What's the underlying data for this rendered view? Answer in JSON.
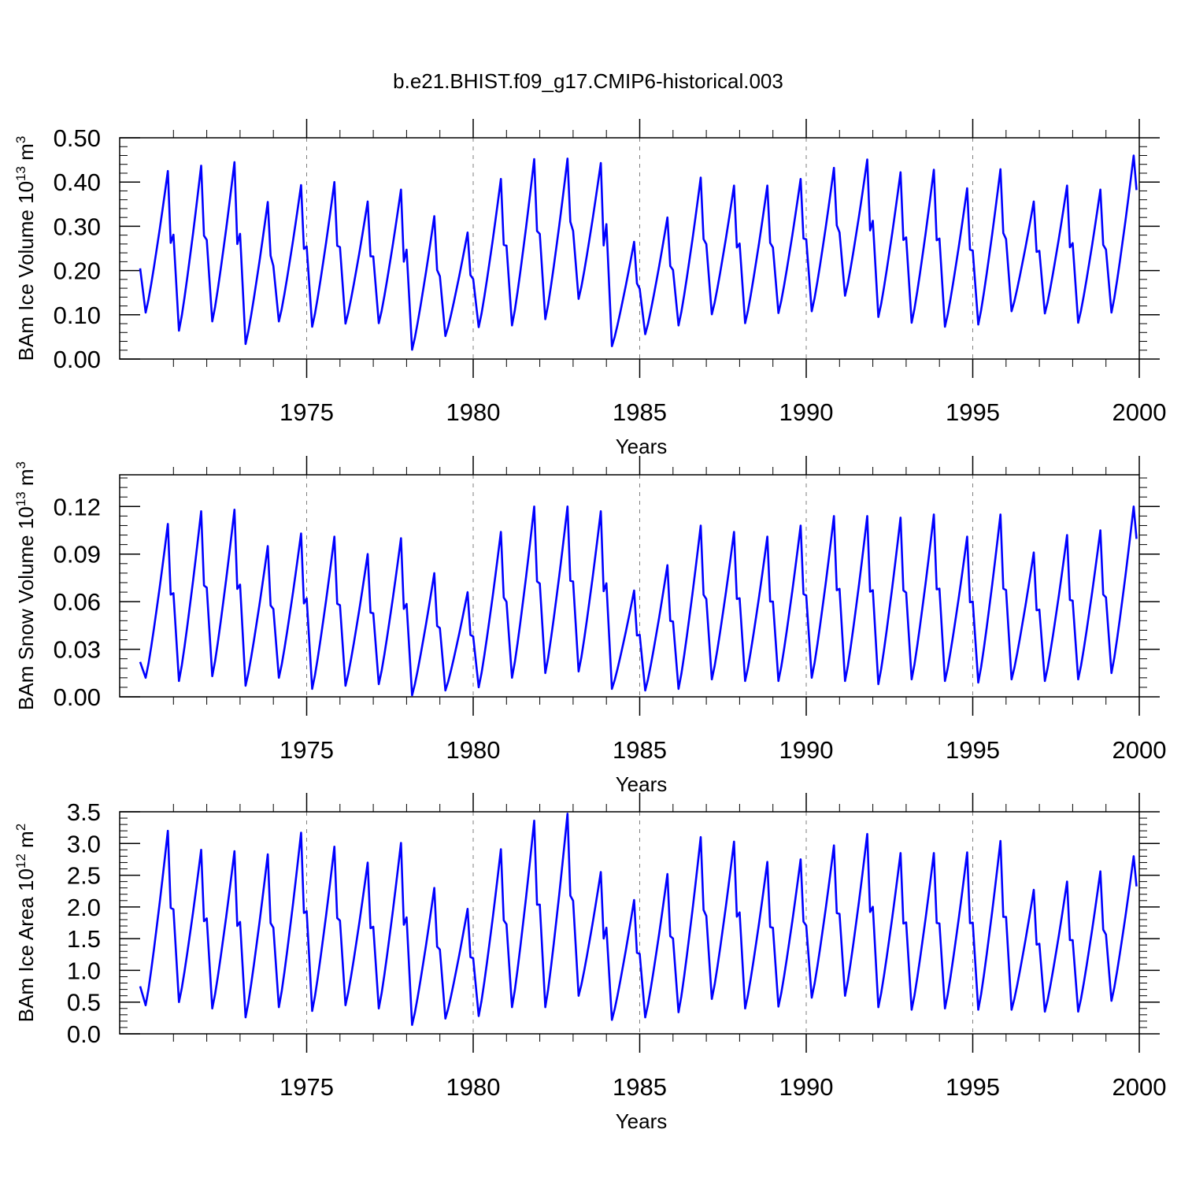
{
  "figure_title": "b.e21.BHIST.f09_g17.CMIP6-historical.003",
  "colors": {
    "line": "#0000ff",
    "axis": "#000000",
    "grid": "#7f7f7f"
  },
  "chart_data": [
    {
      "type": "line",
      "ylabel_main": "BAm Ice Volume 10",
      "ylabel_exp": "13",
      "ylabel_unit": " m",
      "ylabel_unit_exp": "3",
      "xlabel": "Years",
      "xlim": [
        1970.0,
        2000.0
      ],
      "ylim": [
        0.0,
        0.5
      ],
      "xticks": [
        "1975",
        "1980",
        "1985",
        "1990",
        "1995",
        "2000"
      ],
      "xtick_values": [
        1975,
        1980,
        1985,
        1990,
        1995,
        2000
      ],
      "yticks": [
        "0.00",
        "0.10",
        "0.20",
        "0.30",
        "0.40",
        "0.50"
      ],
      "ytick_values": [
        0.0,
        0.1,
        0.2,
        0.3,
        0.4,
        0.5
      ],
      "grid": "vertical dashed at major x ticks",
      "series": [
        {
          "name": "BAm Ice Volume",
          "start_year": 1970.0,
          "step": 0.083333,
          "maxima": [
            0.425,
            0.437,
            0.445,
            0.355,
            0.393,
            0.4,
            0.356,
            0.383,
            0.323,
            0.286,
            0.407,
            0.452,
            0.453,
            0.443,
            0.265,
            0.32,
            0.41,
            0.392,
            0.392,
            0.407,
            0.432,
            0.451,
            0.422,
            0.428,
            0.386,
            0.429,
            0.356,
            0.392,
            0.383,
            0.46
          ],
          "minima": [
            0.105,
            0.064,
            0.085,
            0.034,
            0.085,
            0.073,
            0.08,
            0.081,
            0.021,
            0.052,
            0.072,
            0.076,
            0.09,
            0.136,
            0.029,
            0.056,
            0.076,
            0.101,
            0.081,
            0.104,
            0.108,
            0.143,
            0.095,
            0.082,
            0.073,
            0.078,
            0.108,
            0.103,
            0.082,
            0.105
          ],
          "start_value": 0.205
        }
      ]
    },
    {
      "type": "line",
      "ylabel_main": "BAm Snow Volume 10",
      "ylabel_exp": "13",
      "ylabel_unit": " m",
      "ylabel_unit_exp": "3",
      "xlabel": "Years",
      "xlim": [
        1970.0,
        2000.0
      ],
      "ylim": [
        0.0,
        0.14
      ],
      "xticks": [
        "1975",
        "1980",
        "1985",
        "1990",
        "1995",
        "2000"
      ],
      "xtick_values": [
        1975,
        1980,
        1985,
        1990,
        1995,
        2000
      ],
      "yticks": [
        "0.00",
        "0.03",
        "0.06",
        "0.09",
        "0.12"
      ],
      "ytick_values": [
        0.0,
        0.03,
        0.06,
        0.09,
        0.12
      ],
      "grid": "vertical dashed at major x ticks",
      "series": [
        {
          "name": "BAm Snow Volume",
          "start_year": 1970.0,
          "step": 0.083333,
          "maxima": [
            0.109,
            0.117,
            0.118,
            0.095,
            0.103,
            0.101,
            0.09,
            0.1,
            0.078,
            0.066,
            0.104,
            0.12,
            0.12,
            0.117,
            0.067,
            0.083,
            0.108,
            0.104,
            0.101,
            0.108,
            0.114,
            0.114,
            0.113,
            0.115,
            0.101,
            0.115,
            0.091,
            0.102,
            0.105,
            0.12
          ],
          "minima": [
            0.012,
            0.01,
            0.013,
            0.007,
            0.012,
            0.005,
            0.007,
            0.008,
            0.001,
            0.004,
            0.006,
            0.012,
            0.015,
            0.016,
            0.005,
            0.004,
            0.005,
            0.011,
            0.01,
            0.01,
            0.012,
            0.01,
            0.008,
            0.011,
            0.01,
            0.009,
            0.011,
            0.01,
            0.011,
            0.015
          ],
          "start_value": 0.022
        }
      ]
    },
    {
      "type": "line",
      "ylabel_main": "BAm Ice Area 10",
      "ylabel_exp": "12",
      "ylabel_unit": " m",
      "ylabel_unit_exp": "2",
      "xlabel": "Years",
      "xlim": [
        1970.0,
        2000.0
      ],
      "ylim": [
        0.0,
        3.5
      ],
      "xticks": [
        "1975",
        "1980",
        "1985",
        "1990",
        "1995",
        "2000"
      ],
      "xtick_values": [
        1975,
        1980,
        1985,
        1990,
        1995,
        2000
      ],
      "yticks": [
        "0.0",
        "0.5",
        "1.0",
        "1.5",
        "2.0",
        "2.5",
        "3.0",
        "3.5"
      ],
      "ytick_values": [
        0.0,
        0.5,
        1.0,
        1.5,
        2.0,
        2.5,
        3.0,
        3.5
      ],
      "grid": "vertical dashed at major x ticks",
      "series": [
        {
          "name": "BAm Ice Area",
          "start_year": 1970.0,
          "step": 0.083333,
          "maxima": [
            3.2,
            2.9,
            2.88,
            2.83,
            3.17,
            2.95,
            2.7,
            3.01,
            2.3,
            1.97,
            2.91,
            3.36,
            3.47,
            2.55,
            2.11,
            2.52,
            3.1,
            3.03,
            2.71,
            2.75,
            2.97,
            3.15,
            2.85,
            2.85,
            2.86,
            3.04,
            2.27,
            2.4,
            2.56,
            2.8
          ],
          "minima": [
            0.45,
            0.5,
            0.4,
            0.26,
            0.42,
            0.36,
            0.45,
            0.4,
            0.14,
            0.24,
            0.28,
            0.42,
            0.42,
            0.6,
            0.22,
            0.26,
            0.34,
            0.55,
            0.4,
            0.43,
            0.57,
            0.6,
            0.42,
            0.38,
            0.4,
            0.38,
            0.38,
            0.35,
            0.35,
            0.52
          ],
          "start_value": 0.75
        }
      ]
    }
  ]
}
